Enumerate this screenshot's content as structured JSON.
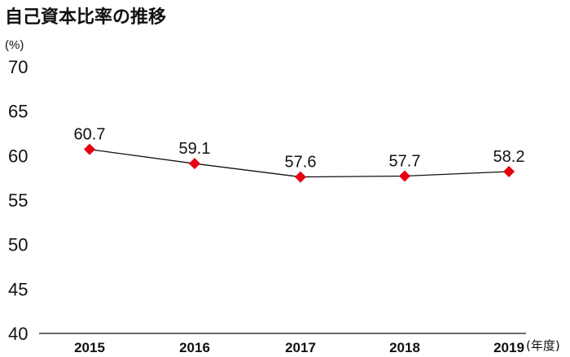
{
  "chart_data": {
    "type": "line",
    "title": "自己資本比率の推移",
    "ylabel": "(%)",
    "xlabel": "(年度)",
    "categories": [
      "2015",
      "2016",
      "2017",
      "2018",
      "2019"
    ],
    "series": [
      {
        "values": [
          60.7,
          59.1,
          57.6,
          57.7,
          58.2
        ],
        "labels": [
          "60.7",
          "59.1",
          "57.6",
          "57.7",
          "58.2"
        ]
      }
    ],
    "ylim": [
      40,
      70
    ],
    "yticks": [
      "40",
      "45",
      "50",
      "55",
      "60",
      "65",
      "70"
    ],
    "grid": false,
    "colors": {
      "line": "#111111",
      "marker": "#e60012",
      "axis": "#111111"
    }
  }
}
